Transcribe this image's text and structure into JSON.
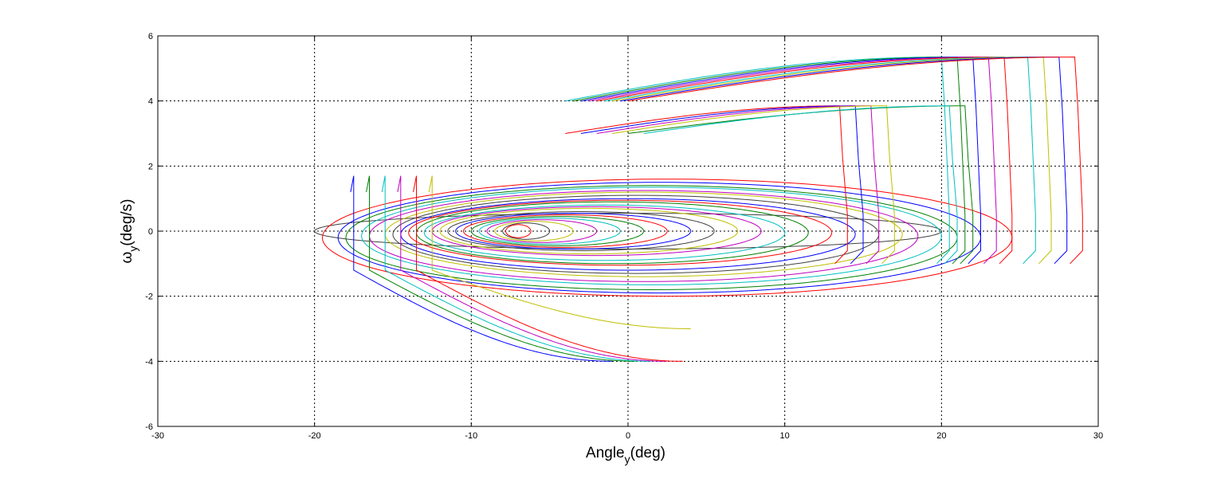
{
  "chart_data": {
    "type": "line",
    "title": "",
    "xlabel": "Angle",
    "xlabel_sub": "y",
    "xlabel_unit": "(deg)",
    "ylabel": "ω",
    "ylabel_sub": "y",
    "ylabel_unit": "(deg/s)",
    "xlim": [
      -30,
      30
    ],
    "ylim": [
      -6,
      6
    ],
    "xticks": [
      -30,
      -20,
      -10,
      0,
      10,
      20,
      30
    ],
    "yticks": [
      -6,
      -4,
      -2,
      0,
      2,
      4,
      6
    ],
    "xtick_labels": [
      "-30",
      "-20",
      "-10",
      "0",
      "10",
      "20",
      "30"
    ],
    "ytick_labels": [
      "-6",
      "-4",
      "-2",
      "0",
      "2",
      "4",
      "6"
    ],
    "grid": true,
    "grid_style": "dotted",
    "legend": "none",
    "series_colors": [
      "#0000ff",
      "#008000",
      "#ff0000",
      "#00bfbf",
      "#bf00bf",
      "#bfbf00",
      "#404040"
    ],
    "series": [
      {
        "kind": "loop",
        "color": "#404040",
        "center": [
          0.0,
          0.0
        ],
        "x_amp": 20.0,
        "y_amp": 0.55
      },
      {
        "kind": "loop",
        "color": "#ff0000",
        "center": [
          2.5,
          -0.2
        ],
        "x_amp": 22.0,
        "y_amp": 1.8
      },
      {
        "kind": "loop",
        "color": "#0000ff",
        "center": [
          2.0,
          -0.2
        ],
        "x_amp": 20.5,
        "y_amp": 1.7
      },
      {
        "kind": "loop",
        "color": "#008000",
        "center": [
          1.5,
          -0.2
        ],
        "x_amp": 19.5,
        "y_amp": 1.6
      },
      {
        "kind": "loop",
        "color": "#00bfbf",
        "center": [
          1.5,
          -0.15
        ],
        "x_amp": 18.5,
        "y_amp": 1.5
      },
      {
        "kind": "loop",
        "color": "#bf00bf",
        "center": [
          1.0,
          -0.15
        ],
        "x_amp": 17.5,
        "y_amp": 1.4
      },
      {
        "kind": "loop",
        "color": "#bfbf00",
        "center": [
          1.0,
          -0.1
        ],
        "x_amp": 16.5,
        "y_amp": 1.3
      },
      {
        "kind": "loop",
        "color": "#404040",
        "center": [
          0.5,
          -0.1
        ],
        "x_amp": 15.5,
        "y_amp": 1.2
      },
      {
        "kind": "loop",
        "color": "#0000ff",
        "center": [
          0.0,
          -0.1
        ],
        "x_amp": 14.5,
        "y_amp": 1.1
      },
      {
        "kind": "loop",
        "color": "#ff0000",
        "center": [
          -0.5,
          -0.05
        ],
        "x_amp": 13.5,
        "y_amp": 1.0
      },
      {
        "kind": "loop",
        "color": "#008000",
        "center": [
          -1.0,
          -0.05
        ],
        "x_amp": 12.5,
        "y_amp": 0.95
      },
      {
        "kind": "loop",
        "color": "#00bfbf",
        "center": [
          -1.5,
          -0.05
        ],
        "x_amp": 11.5,
        "y_amp": 0.85
      },
      {
        "kind": "loop",
        "color": "#bf00bf",
        "center": [
          -2.0,
          0.0
        ],
        "x_amp": 10.5,
        "y_amp": 0.75
      },
      {
        "kind": "loop",
        "color": "#bfbf00",
        "center": [
          -2.5,
          0.0
        ],
        "x_amp": 9.5,
        "y_amp": 0.7
      },
      {
        "kind": "loop",
        "color": "#404040",
        "center": [
          -3.0,
          0.0
        ],
        "x_amp": 8.5,
        "y_amp": 0.6
      },
      {
        "kind": "loop",
        "color": "#0000ff",
        "center": [
          -3.5,
          0.0
        ],
        "x_amp": 7.5,
        "y_amp": 0.55
      },
      {
        "kind": "loop",
        "color": "#ff0000",
        "center": [
          -4.0,
          0.0
        ],
        "x_amp": 6.5,
        "y_amp": 0.5
      },
      {
        "kind": "loop",
        "color": "#008000",
        "center": [
          -4.5,
          0.0
        ],
        "x_amp": 5.5,
        "y_amp": 0.45
      },
      {
        "kind": "loop",
        "color": "#00bfbf",
        "center": [
          -5.0,
          0.0
        ],
        "x_amp": 4.5,
        "y_amp": 0.4
      },
      {
        "kind": "loop",
        "color": "#bf00bf",
        "center": [
          -5.5,
          0.0
        ],
        "x_amp": 3.5,
        "y_amp": 0.35
      },
      {
        "kind": "loop",
        "color": "#bfbf00",
        "center": [
          -6.0,
          0.0
        ],
        "x_amp": 2.5,
        "y_amp": 0.3
      },
      {
        "kind": "loop",
        "color": "#404040",
        "center": [
          -6.5,
          0.0
        ],
        "x_amp": 1.5,
        "y_amp": 0.25
      },
      {
        "kind": "loop",
        "color": "#ff0000",
        "center": [
          -7.0,
          0.0
        ],
        "x_amp": 0.8,
        "y_amp": 0.2
      },
      {
        "kind": "top",
        "color": "#00bfbf",
        "x_start": -4.0,
        "x_end": 20.0,
        "y_start": 4.0,
        "y_end": 5.35
      },
      {
        "kind": "top",
        "color": "#008000",
        "x_start": -3.5,
        "x_end": 21.0,
        "y_start": 4.0,
        "y_end": 5.35
      },
      {
        "kind": "top",
        "color": "#0000ff",
        "x_start": -3.0,
        "x_end": 22.0,
        "y_start": 4.0,
        "y_end": 5.35
      },
      {
        "kind": "top",
        "color": "#bf00bf",
        "x_start": -2.5,
        "x_end": 23.0,
        "y_start": 4.0,
        "y_end": 5.35
      },
      {
        "kind": "top",
        "color": "#ff0000",
        "x_start": -2.0,
        "x_end": 24.0,
        "y_start": 4.0,
        "y_end": 5.35
      },
      {
        "kind": "top",
        "color": "#00bfbf",
        "x_start": -1.5,
        "x_end": 25.5,
        "y_start": 4.0,
        "y_end": 5.35
      },
      {
        "kind": "top",
        "color": "#bfbf00",
        "x_start": -1.0,
        "x_end": 26.5,
        "y_start": 4.0,
        "y_end": 5.35
      },
      {
        "kind": "top",
        "color": "#0000ff",
        "x_start": -0.5,
        "x_end": 27.5,
        "y_start": 4.0,
        "y_end": 5.35
      },
      {
        "kind": "top",
        "color": "#ff0000",
        "x_start": 0.0,
        "x_end": 28.5,
        "y_start": 4.0,
        "y_end": 5.35
      },
      {
        "kind": "mid",
        "color": "#ff0000",
        "x_start": -4.0,
        "x_end": 13.5,
        "y_start": 3.0,
        "y_end": 3.85
      },
      {
        "kind": "mid",
        "color": "#0000ff",
        "x_start": -3.0,
        "x_end": 14.5,
        "y_start": 3.0,
        "y_end": 3.85
      },
      {
        "kind": "mid",
        "color": "#bf00bf",
        "x_start": -2.0,
        "x_end": 15.5,
        "y_start": 3.0,
        "y_end": 3.85
      },
      {
        "kind": "mid",
        "color": "#bfbf00",
        "x_start": -1.0,
        "x_end": 16.5,
        "y_start": 3.0,
        "y_end": 3.85
      },
      {
        "kind": "mid",
        "color": "#008000",
        "x_start": 0.0,
        "x_end": 21.5,
        "y_start": 3.0,
        "y_end": 3.85
      },
      {
        "kind": "mid",
        "color": "#00bfbf",
        "x_start": 1.0,
        "x_end": 20.5,
        "y_start": 3.0,
        "y_end": 3.85
      },
      {
        "kind": "low",
        "color": "#0000ff",
        "x_start": -17.5,
        "x_end": -1.0,
        "y_start": -1.2,
        "y_end": -4.0
      },
      {
        "kind": "low",
        "color": "#008000",
        "x_start": -16.5,
        "x_end": 0.5,
        "y_start": -1.2,
        "y_end": -4.0
      },
      {
        "kind": "low",
        "color": "#00bfbf",
        "x_start": -15.5,
        "x_end": 1.5,
        "y_start": -1.2,
        "y_end": -4.0
      },
      {
        "kind": "low",
        "color": "#bf00bf",
        "x_start": -14.5,
        "x_end": 2.5,
        "y_start": -1.2,
        "y_end": -4.0
      },
      {
        "kind": "low",
        "color": "#ff0000",
        "x_start": -13.5,
        "x_end": 3.5,
        "y_start": -1.2,
        "y_end": -4.0
      },
      {
        "kind": "low",
        "color": "#bfbf00",
        "x_start": -12.5,
        "x_end": 4.0,
        "y_start": -1.2,
        "y_end": -3.0
      }
    ]
  }
}
